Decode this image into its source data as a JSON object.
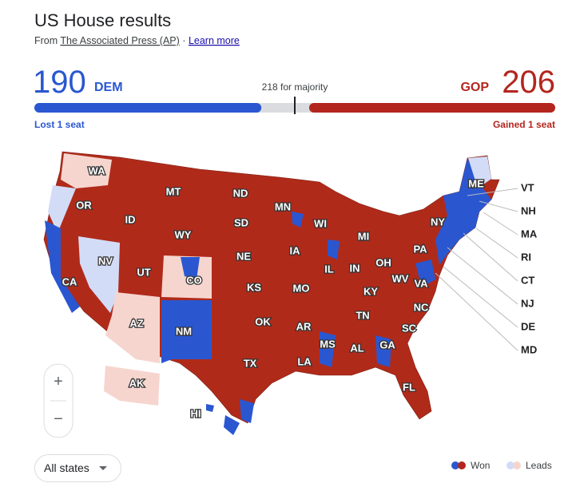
{
  "header": {
    "title": "US House results",
    "source_prefix": "From",
    "source": "The Associated Press (AP)",
    "separator": "·",
    "learn_more": "Learn more"
  },
  "tally": {
    "dem": {
      "seats": 190,
      "label": "DEM",
      "change": "Lost 1 seat",
      "color": "#2a57d0"
    },
    "gop": {
      "seats": 206,
      "label": "GOP",
      "change": "Gained 1 seat",
      "color": "#b3261e"
    },
    "majority": {
      "seats": 218,
      "label": "218 for majority"
    }
  },
  "map": {
    "states": [
      "WA",
      "OR",
      "ID",
      "MT",
      "ND",
      "MN",
      "WI",
      "MI",
      "NY",
      "ME",
      "SD",
      "WY",
      "NV",
      "UT",
      "CO",
      "NE",
      "IA",
      "IL",
      "IN",
      "OH",
      "PA",
      "CA",
      "KS",
      "MO",
      "KY",
      "WV",
      "VA",
      "AZ",
      "NM",
      "OK",
      "AR",
      "TN",
      "NC",
      "SC",
      "TX",
      "LA",
      "MS",
      "AL",
      "GA",
      "FL",
      "AK",
      "HI"
    ],
    "callouts": [
      "VT",
      "NH",
      "MA",
      "RI",
      "CT",
      "NJ",
      "DE",
      "MD"
    ]
  },
  "legend": {
    "won": "Won",
    "leads": "Leads"
  },
  "controls": {
    "zoom_in": "+",
    "zoom_out": "−",
    "filter": "All states"
  }
}
